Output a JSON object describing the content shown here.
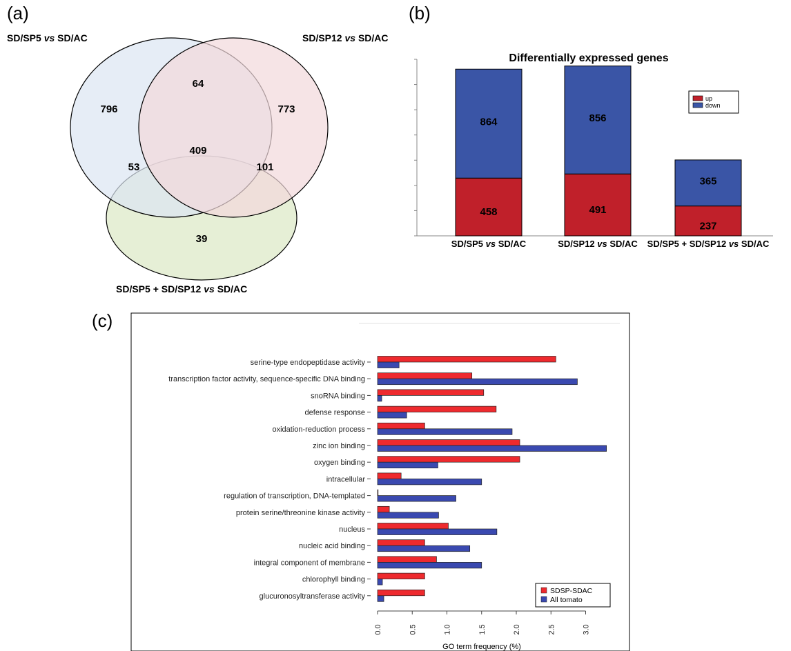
{
  "panels": {
    "a": "(a)",
    "b": "(b)",
    "c": "(c)"
  },
  "chart_data": [
    {
      "type": "venn",
      "sets": [
        {
          "label": "SD/SP5 vs SD/AC",
          "label_pre": "SD/SP5 ",
          "label_vs": "vs",
          "label_post": " SD/AC",
          "color": "#dce6f2"
        },
        {
          "label": "SD/SP12 vs SD/AC",
          "label_pre": "SD/SP12 ",
          "label_vs": "vs",
          "label_post": " SD/AC",
          "color": "#f2d9dc"
        },
        {
          "label": "SD/SP5 + SD/SP12 vs SD/AC",
          "label_pre": "SD/SP5 + SD/SP12 ",
          "label_vs": "vs",
          "label_post": " SD/AC",
          "color": "#dbe8c4"
        }
      ],
      "regions": {
        "only_sp5": "796",
        "only_sp12": "773",
        "only_combined": "39",
        "sp5_sp12": "64",
        "sp5_combined": "53",
        "sp12_combined": "101",
        "all_three": "409"
      }
    },
    {
      "type": "bar",
      "stacked": true,
      "title": "Differentially expressed genes",
      "categories": [
        {
          "label": "SD/SP5 vs SD/AC",
          "pre": "SD/SP5 ",
          "vs": "vs",
          "post": " SD/AC"
        },
        {
          "label": "SD/SP12 vs SD/AC",
          "pre": "SD/SP12 ",
          "vs": "vs",
          "post": " SD/AC"
        },
        {
          "label": "SD/SP5 + SD/SP12 vs SD/AC",
          "pre": "SD/SP5 + SD/SP12 ",
          "vs": "vs",
          "post": " SD/AC"
        }
      ],
      "series": [
        {
          "name": "up",
          "values": [
            458,
            491,
            237
          ],
          "color": "#c0202a"
        },
        {
          "name": "down",
          "values": [
            864,
            856,
            365
          ],
          "color": "#3a55a6"
        }
      ],
      "ylim": [
        0,
        1400
      ],
      "yticks": [
        0,
        200,
        400,
        600,
        800,
        1000,
        1200,
        1400
      ],
      "legend_position": "right"
    },
    {
      "type": "bar",
      "orientation": "horizontal",
      "xlabel": "GO term frequency (%)",
      "xlim": [
        0,
        3.3
      ],
      "xticks": [
        "0.0",
        "0.5",
        "1.0",
        "1.5",
        "2.0",
        "2.5",
        "3.0"
      ],
      "categories": [
        "serine-type endopeptidase activity",
        "transcription factor activity, sequence-specific DNA binding",
        "snoRNA binding",
        "defense response",
        "oxidation-reduction process",
        "zinc ion binding",
        "oxygen binding",
        "intracellular",
        "regulation of transcription, DNA-templated",
        "protein serine/threonine kinase activity",
        "nucleus",
        "nucleic acid binding",
        "integral component of membrane",
        "chlorophyll binding",
        "glucuronosyltransferase activity"
      ],
      "series": [
        {
          "name": "SDSP-SDAC",
          "color": "#ee2a2e",
          "values": [
            2.57,
            1.36,
            1.53,
            1.71,
            0.68,
            2.05,
            2.05,
            0.34,
            0.0,
            0.17,
            1.02,
            0.68,
            0.85,
            0.68,
            0.68
          ]
        },
        {
          "name": "All tomato",
          "color": "#3a49b0",
          "values": [
            0.31,
            2.88,
            0.06,
            0.42,
            1.94,
            3.3,
            0.87,
            1.5,
            1.13,
            0.88,
            1.72,
            1.33,
            1.5,
            0.07,
            0.09
          ]
        }
      ],
      "legend_position": "bottom-right"
    }
  ]
}
